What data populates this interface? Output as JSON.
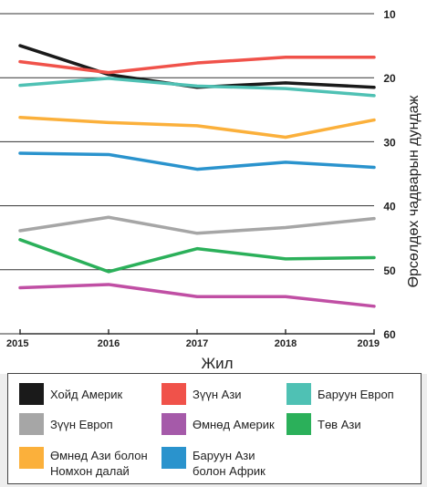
{
  "chart_data": {
    "type": "line",
    "x": [
      2015,
      2016,
      2017,
      2018,
      2019
    ],
    "xlabel": "Жил",
    "ylabel": "Өрсөлдөх чадварын дундаж",
    "ylim": [
      10,
      60
    ],
    "y_inverted": true,
    "yticks": [
      10,
      20,
      30,
      40,
      50,
      60
    ],
    "grid": "horizontal",
    "series": [
      {
        "name": "Хойд Америк",
        "color": "#1a1a1a",
        "values": [
          15,
          19.5,
          21.5,
          20.8,
          21.5
        ]
      },
      {
        "name": "Зүүн Ази",
        "color": "#f0524a",
        "values": [
          17.5,
          19.2,
          17.7,
          16.8,
          16.8
        ]
      },
      {
        "name": "Баруун Европ",
        "color": "#4fc1b4",
        "values": [
          21.2,
          20.1,
          21.3,
          21.7,
          22.8
        ]
      },
      {
        "name": "Өмнөд Ази болон Номхон далай",
        "color": "#fbb03b",
        "values": [
          26.2,
          27.0,
          27.5,
          29.3,
          26.6
        ]
      },
      {
        "name": "Баруун Ази болон Африк",
        "color": "#2a93cd",
        "values": [
          31.8,
          32.0,
          34.3,
          33.2,
          34.0
        ]
      },
      {
        "name": "Зүүн Европ",
        "color": "#a6a6a6",
        "values": [
          43.9,
          41.8,
          44.3,
          43.4,
          42.0
        ]
      },
      {
        "name": "Төв Ази",
        "color": "#2bb05a",
        "values": [
          45.3,
          50.3,
          46.7,
          48.3,
          48.1
        ]
      },
      {
        "name": "Өмнөд Америк",
        "color": "#c04fa4",
        "values": [
          52.8,
          52.3,
          54.2,
          54.2,
          55.7
        ]
      }
    ]
  },
  "legend": {
    "north_america": "Хойд Америк",
    "east_asia": "Зүүн Ази",
    "western_europe": "Баруун Европ",
    "eastern_europe": "Зүүн Европ",
    "south_america": "Өмнөд Америк",
    "central_asia": "Төв Ази",
    "south_asia_1": "Өмнөд Ази болон",
    "south_asia_2": "Номхон далай",
    "west_asia_1": "Баруун Ази",
    "west_asia_2": "болон Африк"
  },
  "colors": {
    "north_america": "#1a1a1a",
    "east_asia": "#f0524a",
    "western_europe": "#4fc1b4",
    "eastern_europe": "#a6a6a6",
    "south_america": "#a55aa9",
    "central_asia": "#2bb05a",
    "south_asia": "#fbb03b",
    "west_asia": "#2a93cd"
  }
}
